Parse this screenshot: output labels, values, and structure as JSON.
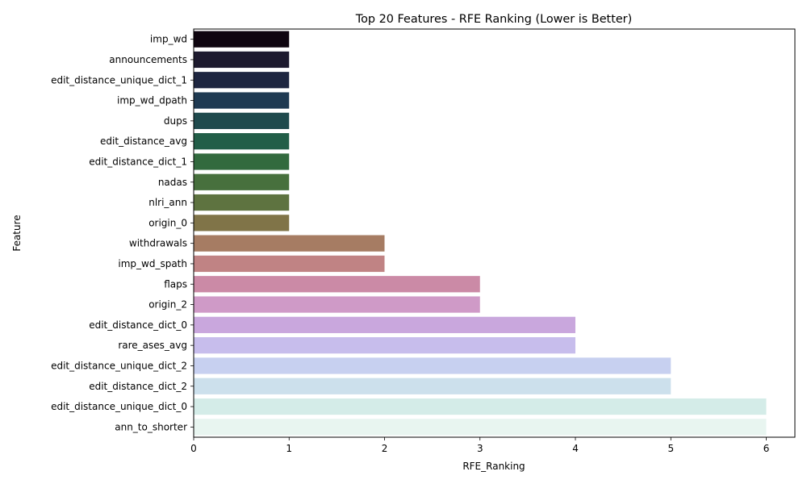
{
  "chart_data": {
    "type": "bar",
    "orientation": "horizontal",
    "title": "Top 20 Features - RFE Ranking (Lower is Better)",
    "xlabel": "RFE_Ranking",
    "ylabel": "Feature",
    "xlim": [
      0,
      6.3
    ],
    "xticks": [
      0,
      1,
      2,
      3,
      4,
      5,
      6
    ],
    "grid": false,
    "categories": [
      "imp_wd",
      "announcements",
      "edit_distance_unique_dict_1",
      "imp_wd_dpath",
      "dups",
      "edit_distance_avg",
      "edit_distance_dict_1",
      "nadas",
      "nlri_ann",
      "origin_0",
      "withdrawals",
      "imp_wd_spath",
      "flaps",
      "origin_2",
      "edit_distance_dict_0",
      "rare_ases_avg",
      "edit_distance_unique_dict_2",
      "edit_distance_dict_2",
      "edit_distance_unique_dict_0",
      "ann_to_shorter"
    ],
    "values": [
      1,
      1,
      1,
      1,
      1,
      1,
      1,
      1,
      1,
      1,
      2,
      2,
      3,
      3,
      4,
      4,
      5,
      5,
      6,
      6
    ],
    "colors": [
      "#0f0510",
      "#1d1a2e",
      "#1e2640",
      "#1f3a52",
      "#1f4a4d",
      "#225e48",
      "#326a3e",
      "#47703d",
      "#5e7340",
      "#807448",
      "#a67c63",
      "#c08384",
      "#cb8aa6",
      "#cf9ac7",
      "#c9a7dd",
      "#c7bdec",
      "#c7d0f0",
      "#cce0ec",
      "#d4ece8",
      "#e8f5f0"
    ]
  }
}
